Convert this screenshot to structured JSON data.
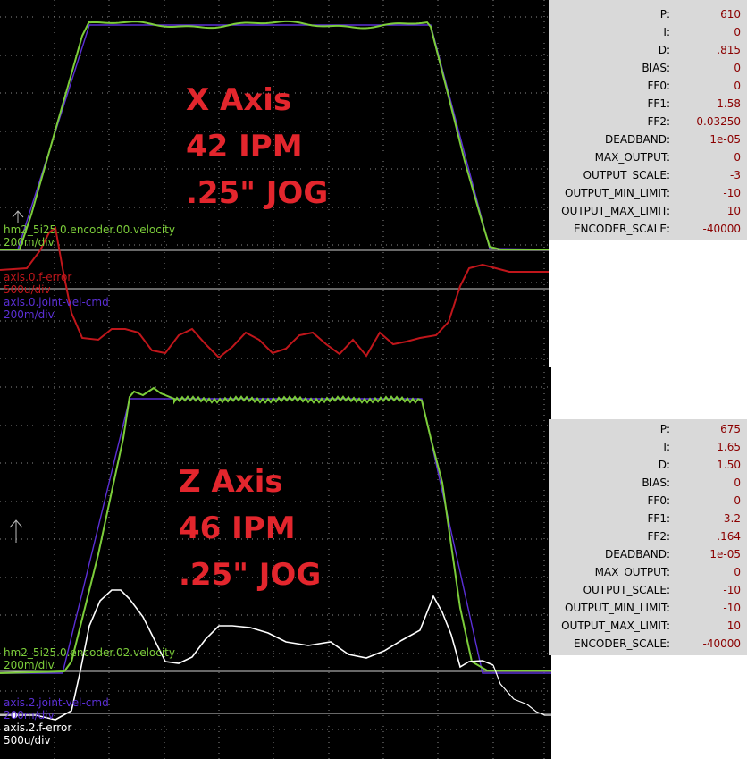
{
  "x_axis": {
    "overlay_lines": [
      "X Axis",
      "42 IPM",
      ".25\" JOG"
    ],
    "traces": [
      {
        "name": "hm2_5i25.0.encoder.00.velocity",
        "scale": "200m/div",
        "color": "#7ccd3a"
      },
      {
        "name": "axis.0.f-error",
        "scale": "500u/div",
        "color": "#c0161b"
      },
      {
        "name": "axis.0.joint-vel-cmd",
        "scale": "200m/div",
        "color": "#5b2fd6"
      }
    ],
    "params": [
      {
        "name": "P:",
        "value": "610"
      },
      {
        "name": "I:",
        "value": "0"
      },
      {
        "name": "D:",
        "value": ".815"
      },
      {
        "name": "BIAS:",
        "value": "0"
      },
      {
        "name": "FF0:",
        "value": "0"
      },
      {
        "name": "FF1:",
        "value": "1.58"
      },
      {
        "name": "FF2:",
        "value": "0.03250"
      },
      {
        "name": "DEADBAND:",
        "value": "1e-05"
      },
      {
        "name": "MAX_OUTPUT:",
        "value": "0"
      },
      {
        "name": "OUTPUT_SCALE:",
        "value": "-3"
      },
      {
        "name": "OUTPUT_MIN_LIMIT:",
        "value": "-10"
      },
      {
        "name": "OUTPUT_MAX_LIMIT:",
        "value": "10"
      },
      {
        "name": "ENCODER_SCALE:",
        "value": "-40000"
      }
    ]
  },
  "z_axis": {
    "overlay_lines": [
      "Z Axis",
      "46 IPM",
      ".25\" JOG"
    ],
    "traces": [
      {
        "name": "hm2_5i25.0.encoder.02.velocity",
        "scale": "200m/div",
        "color": "#7ccd3a"
      },
      {
        "name": "axis.2.joint-vel-cmd",
        "scale": "200m/div",
        "color": "#5b2fd6"
      },
      {
        "name": "axis.2.f-error",
        "scale": "500u/div",
        "color": "#ffffff"
      }
    ],
    "params": [
      {
        "name": "P:",
        "value": "675"
      },
      {
        "name": "I:",
        "value": "1.65"
      },
      {
        "name": "D:",
        "value": "1.50"
      },
      {
        "name": "BIAS:",
        "value": "0"
      },
      {
        "name": "FF0:",
        "value": "0"
      },
      {
        "name": "FF1:",
        "value": "3.2"
      },
      {
        "name": "FF2:",
        "value": ".164"
      },
      {
        "name": "DEADBAND:",
        "value": "1e-05"
      },
      {
        "name": "MAX_OUTPUT:",
        "value": "0"
      },
      {
        "name": "OUTPUT_SCALE:",
        "value": "-10"
      },
      {
        "name": "OUTPUT_MIN_LIMIT:",
        "value": "-10"
      },
      {
        "name": "OUTPUT_MAX_LIMIT:",
        "value": "10"
      },
      {
        "name": "ENCODER_SCALE:",
        "value": "-40000"
      }
    ]
  }
}
